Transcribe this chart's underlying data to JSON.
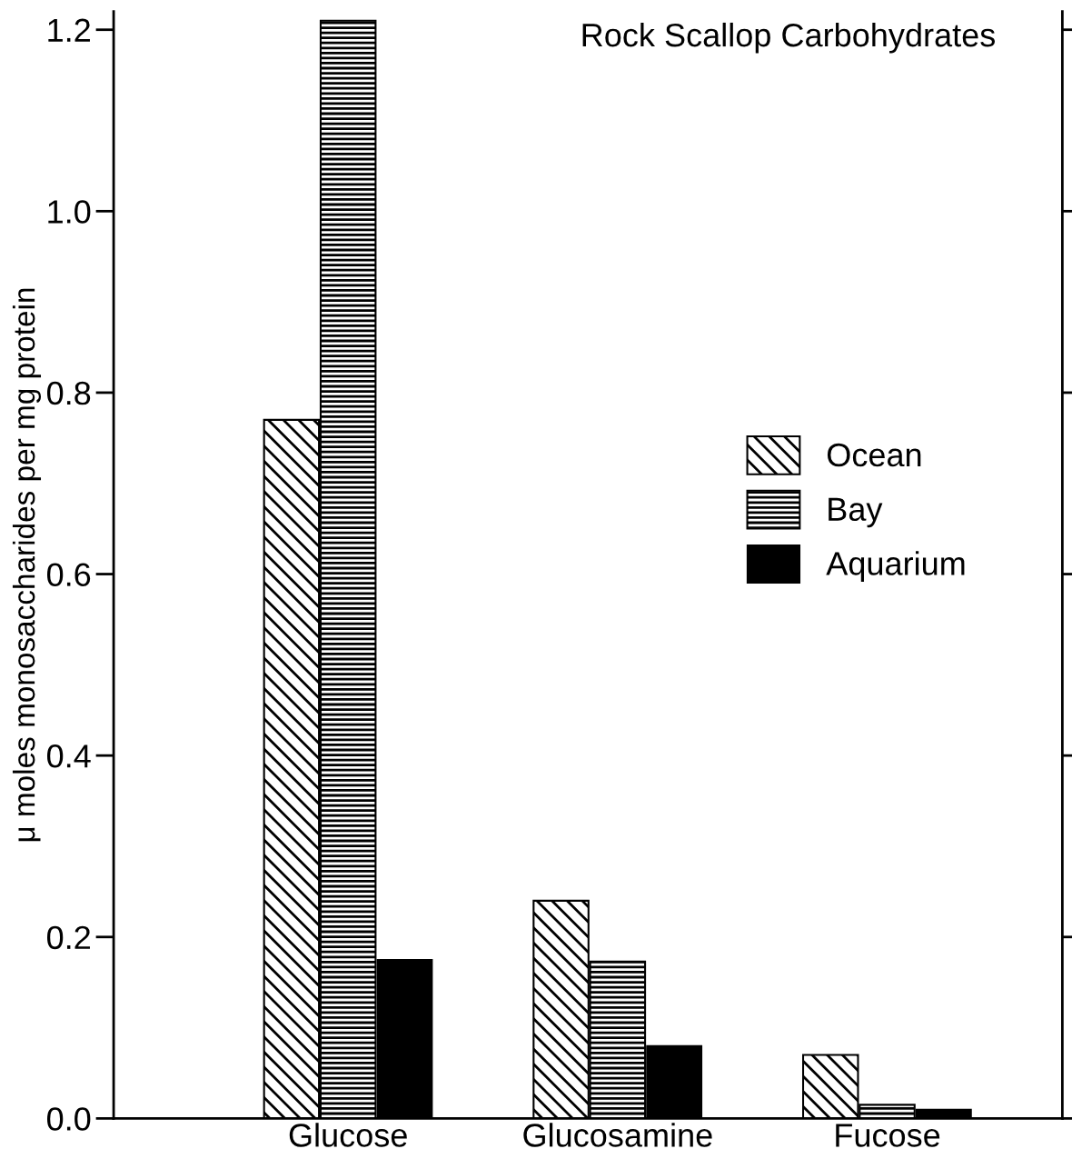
{
  "chart_data": {
    "type": "bar",
    "title": "Rock Scallop Carbohydrates",
    "ylabel": "μ moles monosaccharides per mg protein",
    "categories": [
      "Glucose",
      "Glucosamine",
      "Fucose"
    ],
    "series": [
      {
        "name": "Ocean",
        "color": "#000000",
        "values": [
          0.77,
          0.24,
          0.07
        ]
      },
      {
        "name": "Bay",
        "color": "#000000",
        "values": [
          1.21,
          0.173,
          0.015
        ]
      },
      {
        "name": "Aquarium",
        "color": "#000000",
        "values": [
          0.175,
          0.08,
          0.01
        ]
      }
    ],
    "ylim": [
      0,
      1.22
    ],
    "yticks": [
      {
        "value": 0,
        "label": "0.0"
      },
      {
        "value": 0.2,
        "label": "0.2"
      },
      {
        "value": 0.4,
        "label": "0.4"
      },
      {
        "value": 0.6,
        "label": "0.6"
      },
      {
        "value": 0.8,
        "label": "0.8"
      },
      {
        "value": 1.0,
        "label": "1.0"
      },
      {
        "value": 1.2,
        "label": "1.2"
      }
    ],
    "grid": false,
    "legend": "right"
  }
}
